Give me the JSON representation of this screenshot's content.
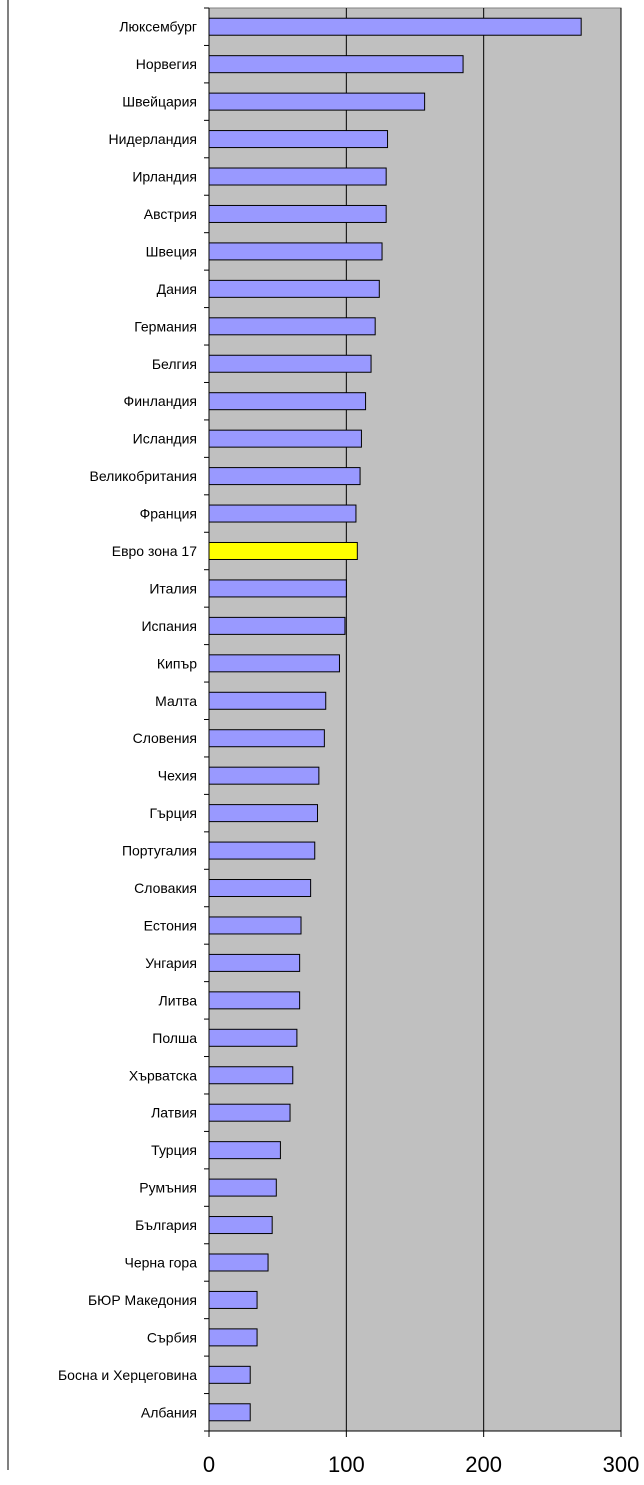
{
  "chart_data": {
    "type": "bar",
    "orientation": "horizontal",
    "title": "",
    "xlabel": "",
    "ylabel": "",
    "xlim": [
      0,
      300
    ],
    "x_ticks": [
      0,
      100,
      200,
      300
    ],
    "grid": true,
    "plot_background": "#c0c0c0",
    "bar_color": "#9999ff",
    "highlight_color": "#ffff00",
    "highlight_category": "Евро зона 17",
    "categories": [
      "Люксембург",
      "Норвегия",
      "Швейцария",
      "Нидерландия",
      "Ирландия",
      "Австрия",
      "Швеция",
      "Дания",
      "Германия",
      "Белгия",
      "Финландия",
      "Исландия",
      "Великобритания",
      "Франция",
      "Евро зона 17",
      "Италия",
      "Испания",
      "Кипър",
      "Малта",
      "Словения",
      "Чехия",
      "Гърция",
      "Португалия",
      "Словакия",
      "Естония",
      "Унгария",
      "Литва",
      "Полша",
      "Хърватска",
      "Латвия",
      "Турция",
      "Румъния",
      "България",
      "Черна гора",
      "БЮР Македония",
      "Сърбия",
      "Босна и Херцеговина",
      "Албания"
    ],
    "values": [
      271,
      185,
      157,
      130,
      129,
      129,
      126,
      124,
      121,
      118,
      114,
      111,
      110,
      107,
      108,
      100,
      99,
      95,
      85,
      84,
      80,
      79,
      77,
      74,
      67,
      66,
      66,
      64,
      61,
      59,
      52,
      49,
      46,
      43,
      35,
      35,
      30,
      30
    ]
  }
}
